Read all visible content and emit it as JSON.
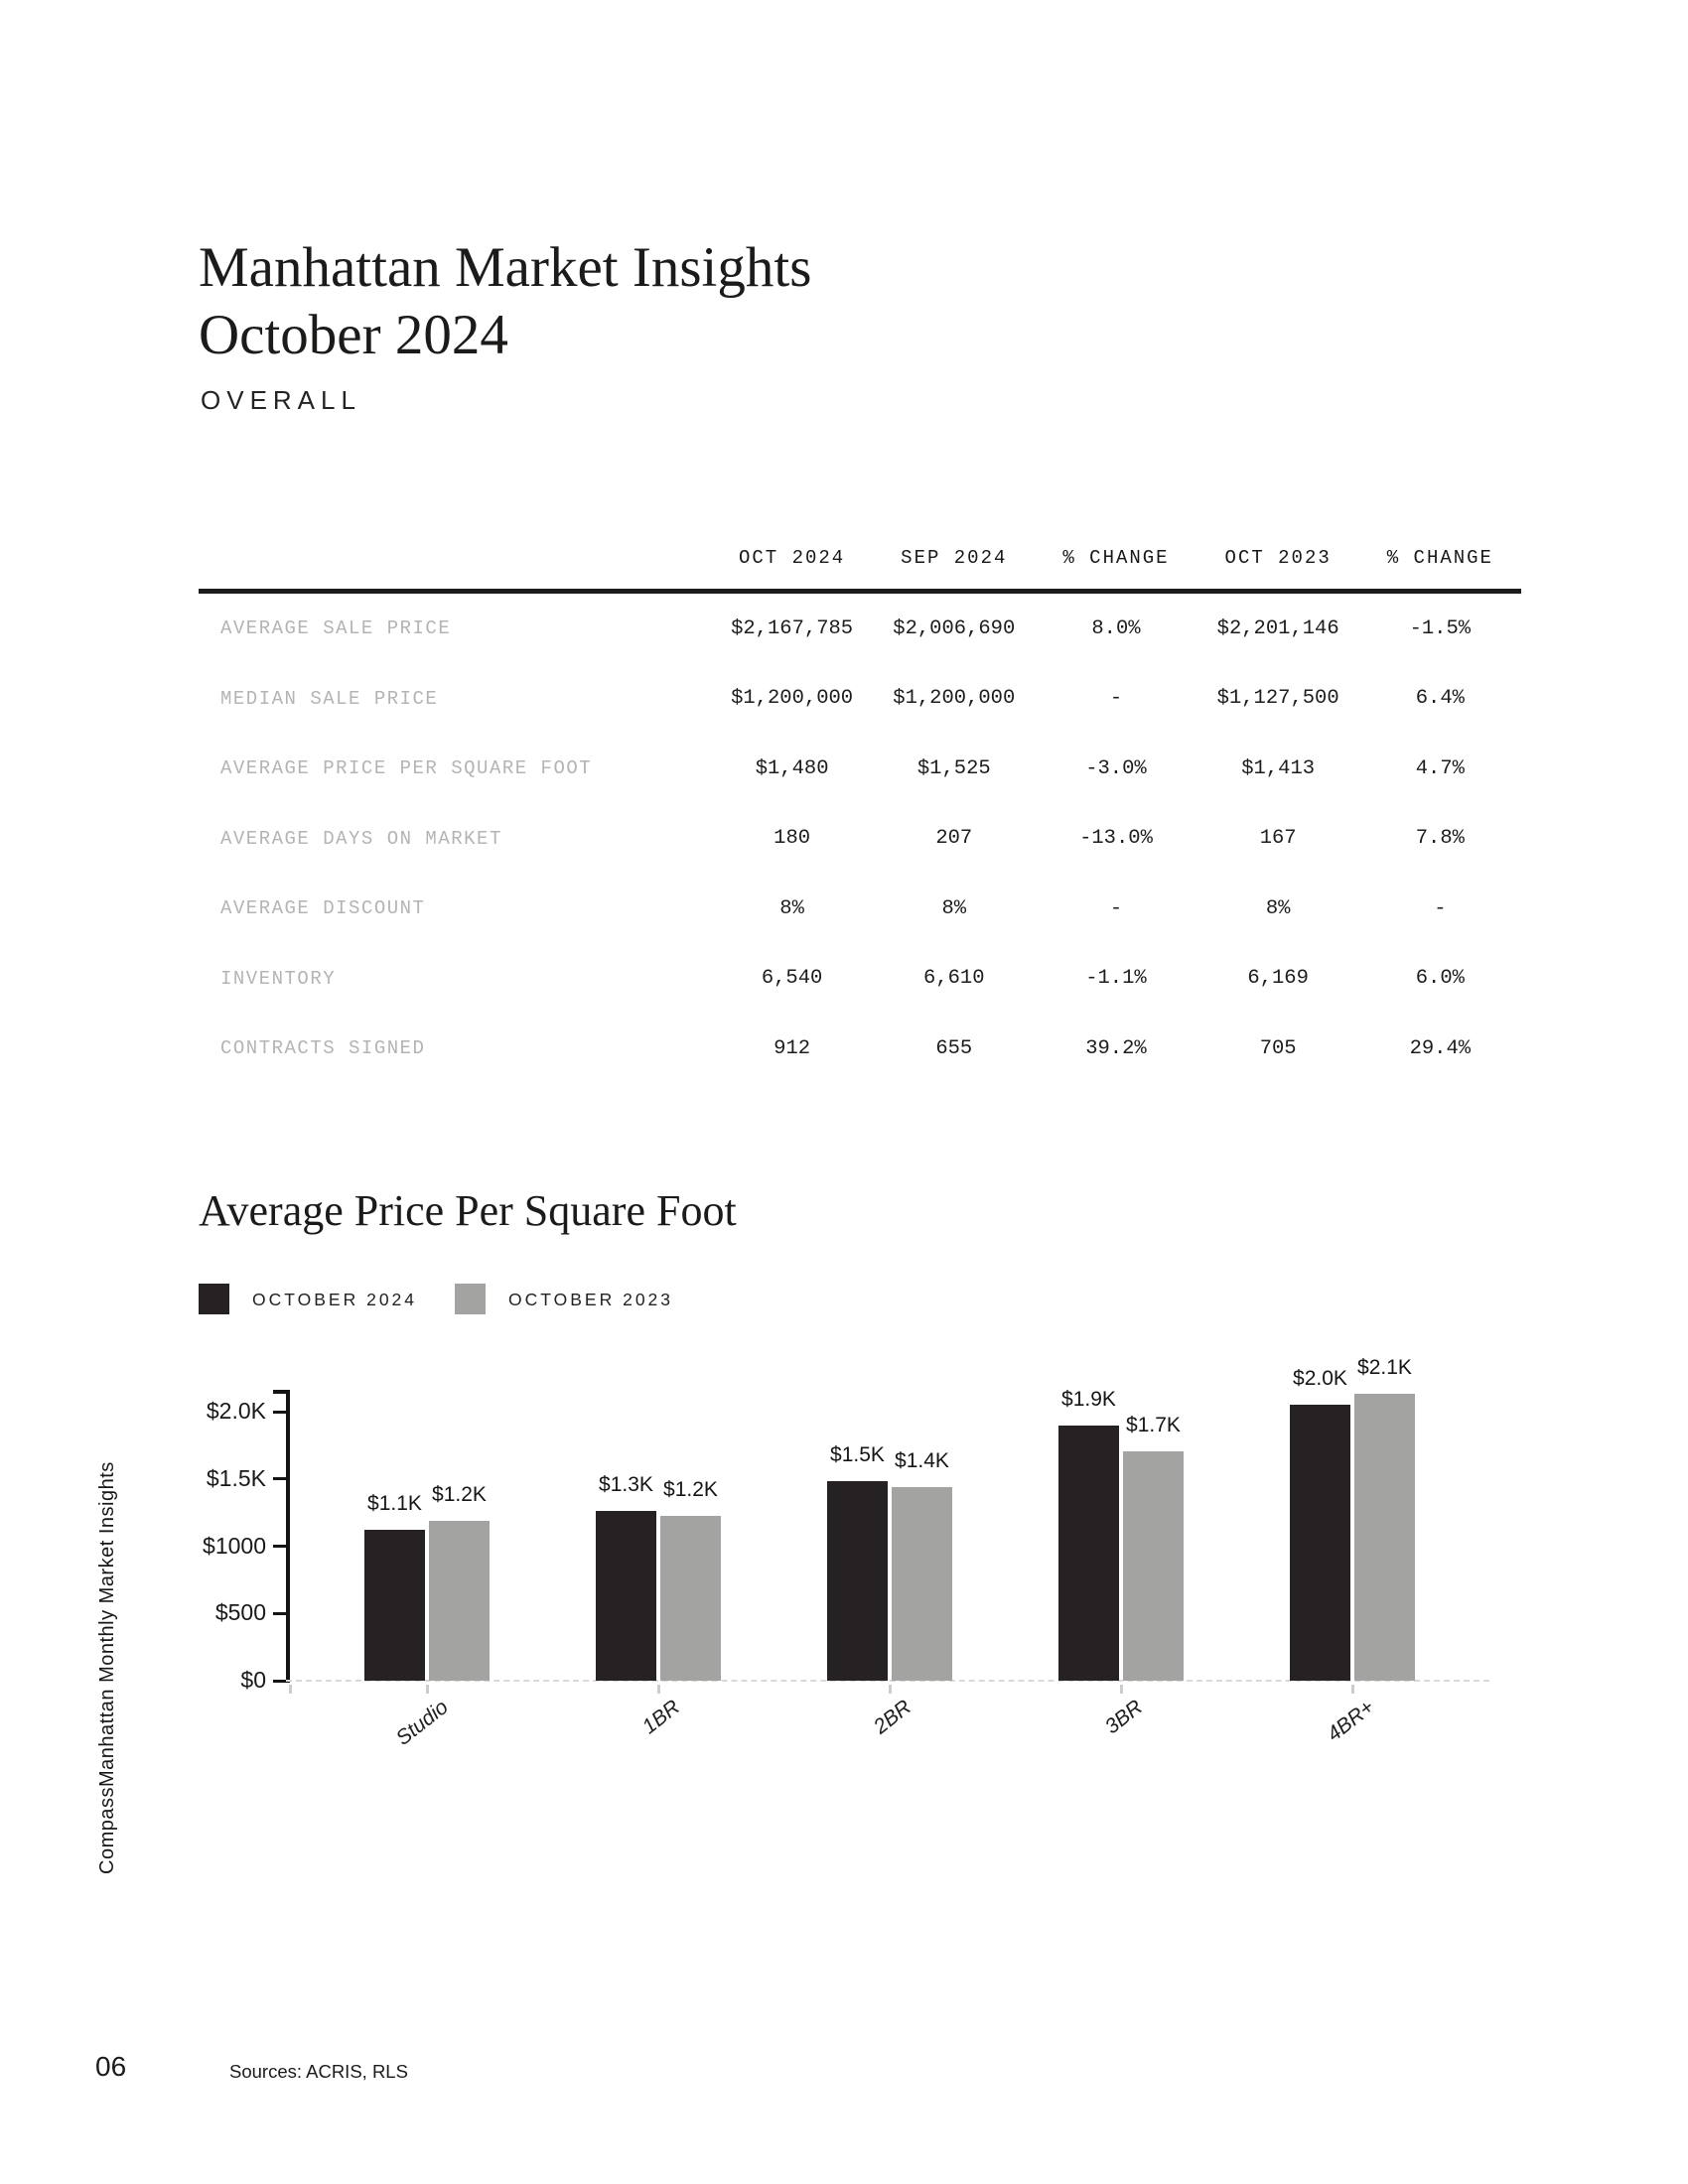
{
  "header": {
    "title_line1": "Manhattan Market Insights",
    "title_line2": "October 2024",
    "section_label": "OVERALL"
  },
  "sidebar": {
    "report_title": "Manhattan Monthly Market Insights",
    "brand": "Compass"
  },
  "table": {
    "columns": [
      "OCT 2024",
      "SEP 2024",
      "% CHANGE",
      "OCT 2023",
      "% CHANGE"
    ],
    "rows": [
      {
        "label": "AVERAGE SALE PRICE",
        "values": [
          "$2,167,785",
          "$2,006,690",
          "8.0%",
          "$2,201,146",
          "-1.5%"
        ]
      },
      {
        "label": "MEDIAN SALE PRICE",
        "values": [
          "$1,200,000",
          "$1,200,000",
          "-",
          "$1,127,500",
          "6.4%"
        ]
      },
      {
        "label": "AVERAGE PRICE PER SQUARE FOOT",
        "values": [
          "$1,480",
          "$1,525",
          "-3.0%",
          "$1,413",
          "4.7%"
        ]
      },
      {
        "label": "AVERAGE DAYS ON MARKET",
        "values": [
          "180",
          "207",
          "-13.0%",
          "167",
          "7.8%"
        ]
      },
      {
        "label": "AVERAGE DISCOUNT",
        "values": [
          "8%",
          "8%",
          "-",
          "8%",
          "-"
        ]
      },
      {
        "label": "INVENTORY",
        "values": [
          "6,540",
          "6,610",
          "-1.1%",
          "6,169",
          "6.0%"
        ]
      },
      {
        "label": "CONTRACTS SIGNED",
        "values": [
          "912",
          "655",
          "39.2%",
          "705",
          "29.4%"
        ]
      }
    ]
  },
  "chart_data": {
    "type": "bar",
    "title": "Average Price Per Square Foot",
    "categories": [
      "Studio",
      "1BR",
      "2BR",
      "3BR",
      "4BR+"
    ],
    "series": [
      {
        "name": "OCTOBER 2024",
        "color": "#262223",
        "values": [
          1120,
          1265,
          1480,
          1900,
          2050
        ],
        "labels": [
          "$1.1K",
          "$1.3K",
          "$1.5K",
          "$1.9K",
          "$2.0K"
        ]
      },
      {
        "name": "OCTOBER 2023",
        "color": "#a3a3a2",
        "values": [
          1190,
          1225,
          1440,
          1705,
          2130
        ],
        "labels": [
          "$1.2K",
          "$1.2K",
          "$1.4K",
          "$1.7K",
          "$2.1K"
        ]
      }
    ],
    "y_ticks": [
      {
        "label": "$0",
        "value": 0
      },
      {
        "label": "$500",
        "value": 500
      },
      {
        "label": "$1000",
        "value": 1000
      },
      {
        "label": "$1.5K",
        "value": 1500
      },
      {
        "label": "$2.0K",
        "value": 2000
      }
    ],
    "ylim": [
      0,
      2160
    ],
    "xlabel": "",
    "ylabel": "",
    "grid": "dashed-zero-line-only",
    "legend_position": "top-left"
  },
  "footer": {
    "page_number": "06",
    "sources": "Sources: ACRIS, RLS"
  }
}
